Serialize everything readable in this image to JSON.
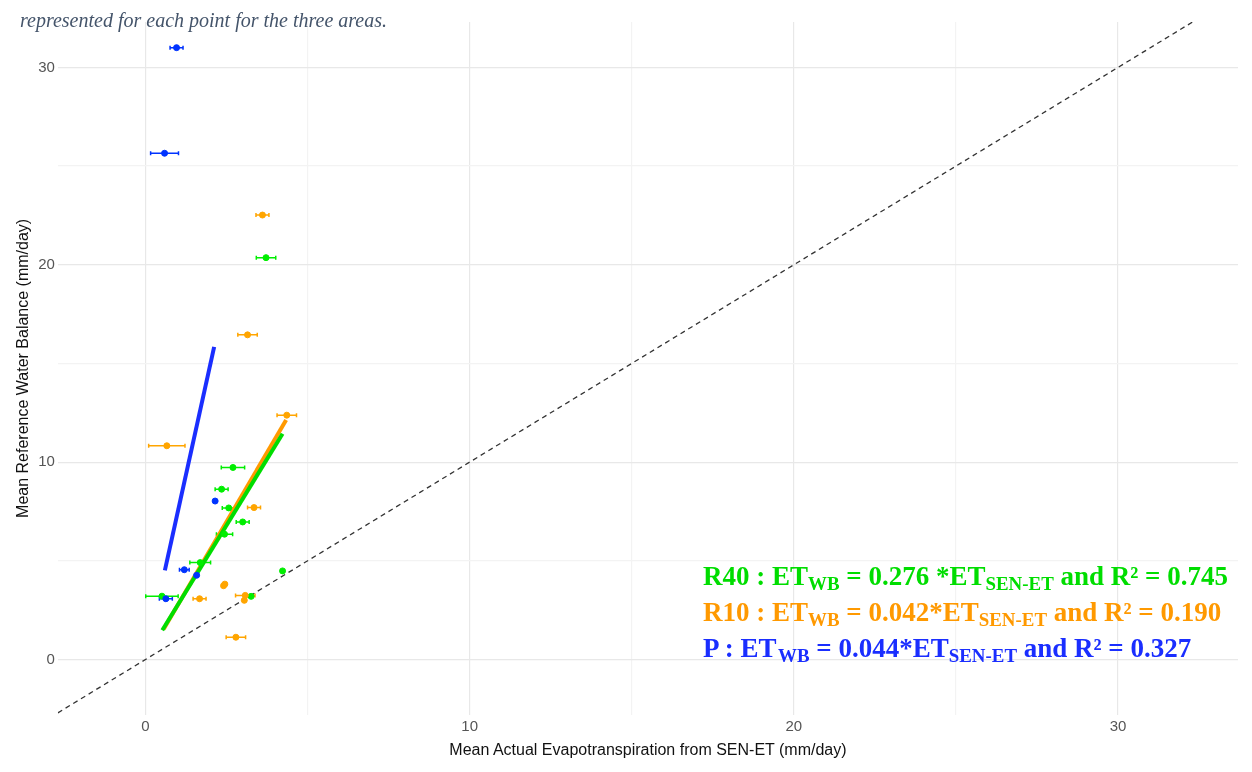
{
  "chart_data": {
    "type": "scatter",
    "xlabel": "Mean Actual Evapotranspiration from SEN-ET (mm/day)",
    "ylabel": "Mean Reference Water Balance (mm/day)",
    "annotations": [
      "represented for each point for the three areas."
    ],
    "xlim": [
      -2.7,
      33.7
    ],
    "ylim": [
      -2.8,
      32.3
    ],
    "xticks": [
      0,
      {
        "value": 5,
        "label": null
      },
      10,
      {
        "value": 15,
        "label": null
      },
      20,
      {
        "value": 25,
        "label": null
      },
      30
    ],
    "yticks": [
      0,
      {
        "value": 5,
        "label": null
      },
      10,
      {
        "value": 15,
        "label": null
      },
      20,
      {
        "value": 25,
        "label": null
      },
      30
    ],
    "grid": true,
    "marker": "circle",
    "legend": "bottom right",
    "series": [
      {
        "color": "#0033ff",
        "x": [
          0.96,
          0.59,
          2.15,
          1.2,
          1.58,
          0.63
        ],
        "values": [
          31.0,
          25.65,
          8.03,
          4.55,
          4.27,
          3.08
        ],
        "xerrors": [
          0.2,
          0.43,
          null,
          0.15,
          null,
          0.2
        ]
      },
      {
        "color": "#ffa500",
        "x": [
          3.61,
          3.15,
          4.36,
          0.66,
          3.35,
          2.41,
          2.45,
          1.67,
          3.08,
          3.05,
          2.79
        ],
        "values": [
          22.52,
          16.45,
          12.38,
          10.83,
          7.7,
          3.74,
          3.82,
          3.08,
          3.25,
          3.0,
          1.13
        ],
        "xerrors": [
          0.2,
          0.3,
          0.3,
          0.56,
          0.2,
          null,
          null,
          0.2,
          0.3,
          null,
          0.3
        ]
      },
      {
        "color": "#00ee00",
        "x": [
          3.72,
          2.7,
          2.35,
          2.57,
          3.0,
          2.44,
          1.69,
          4.23,
          0.51,
          3.26
        ],
        "values": [
          20.36,
          9.73,
          8.63,
          7.68,
          6.97,
          6.35,
          4.91,
          4.49,
          3.21,
          3.2
        ],
        "xerrors": [
          0.3,
          0.36,
          0.2,
          0.2,
          0.2,
          0.25,
          0.32,
          null,
          0.5,
          null
        ]
      },
      {
        "type": "line",
        "marker": "none",
        "line_style": "dashed",
        "color": "#333333",
        "x": [
          -2.7,
          32.3
        ],
        "values": [
          -2.7,
          32.3
        ]
      },
      {
        "type": "line",
        "marker": "none",
        "name": "R40 : ET$_{WB}$ = 0.276 *ET$_{SEN-ET}$ and R² = 0.745",
        "color": "#00dd00",
        "x": [
          0.52,
          4.23
        ],
        "values": [
          1.48,
          11.44
        ]
      },
      {
        "type": "line",
        "marker": "none",
        "name": "R10 : ET$_{WB}$ = 0.042*ET$_{SEN-ET}$ and R² = 0.190",
        "color": "#ff9900",
        "x": [
          0.56,
          4.34
        ],
        "values": [
          1.53,
          12.14
        ]
      },
      {
        "type": "line",
        "marker": "none",
        "name": "P : ET$_{WB}$ = 0.044*ET$_{SEN-ET}$ and R² = 0.327",
        "color": "#1a2eff",
        "x": [
          0.6,
          2.12
        ],
        "values": [
          4.52,
          15.84
        ]
      }
    ]
  }
}
